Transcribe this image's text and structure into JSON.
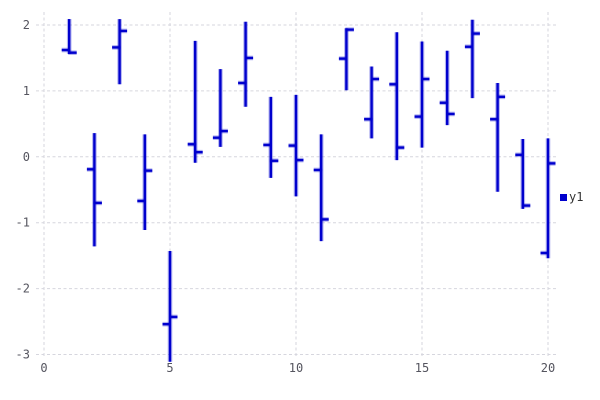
{
  "chart_data": {
    "type": "ohlc",
    "title": "",
    "xlabel": "",
    "ylabel": "",
    "grid": true,
    "x_ticks": [
      0,
      5,
      10,
      15,
      20
    ],
    "y_ticks": [
      2,
      1,
      0,
      -1,
      -2,
      -3
    ],
    "xlim": [
      -0.3,
      20.3
    ],
    "ylim": [
      -3.15,
      2.26
    ],
    "legend": {
      "label": "y1",
      "position": "right-middle-outside"
    },
    "series": [
      {
        "name": "y1",
        "color": "#0000cd",
        "points": [
          {
            "x": 1,
            "open": 1.62,
            "close": 1.58,
            "high": 2.09,
            "low": 1.56
          },
          {
            "x": 2,
            "open": -0.19,
            "close": -0.7,
            "high": 0.36,
            "low": -1.36
          },
          {
            "x": 3,
            "open": 1.66,
            "close": 1.91,
            "high": 2.09,
            "low": 1.1
          },
          {
            "x": 4,
            "open": -0.67,
            "close": -0.21,
            "high": 0.34,
            "low": -1.11
          },
          {
            "x": 5,
            "open": -2.54,
            "close": -2.43,
            "high": -1.43,
            "low": -3.11
          },
          {
            "x": 6,
            "open": 0.19,
            "close": 0.07,
            "high": 1.76,
            "low": -0.09
          },
          {
            "x": 7,
            "open": 0.29,
            "close": 0.39,
            "high": 1.33,
            "low": 0.15
          },
          {
            "x": 8,
            "open": 1.12,
            "close": 1.5,
            "high": 2.05,
            "low": 0.76
          },
          {
            "x": 9,
            "open": 0.18,
            "close": -0.06,
            "high": 0.91,
            "low": -0.32
          },
          {
            "x": 10,
            "open": 0.17,
            "close": -0.05,
            "high": 0.94,
            "low": -0.6
          },
          {
            "x": 11,
            "open": -0.2,
            "close": -0.95,
            "high": 0.34,
            "low": -1.28
          },
          {
            "x": 12,
            "open": 1.49,
            "close": 1.93,
            "high": 1.95,
            "low": 1.01
          },
          {
            "x": 13,
            "open": 0.57,
            "close": 1.18,
            "high": 1.37,
            "low": 0.28
          },
          {
            "x": 14,
            "open": 1.1,
            "close": 0.14,
            "high": 1.89,
            "low": -0.05
          },
          {
            "x": 15,
            "open": 0.61,
            "close": 1.18,
            "high": 1.75,
            "low": 0.14
          },
          {
            "x": 16,
            "open": 0.82,
            "close": 0.65,
            "high": 1.61,
            "low": 0.48
          },
          {
            "x": 17,
            "open": 1.67,
            "close": 1.87,
            "high": 2.08,
            "low": 0.89
          },
          {
            "x": 18,
            "open": 0.57,
            "close": 0.91,
            "high": 1.12,
            "low": -0.53
          },
          {
            "x": 19,
            "open": 0.03,
            "close": -0.74,
            "high": 0.27,
            "low": -0.79
          },
          {
            "x": 20,
            "open": -1.46,
            "close": -0.1,
            "high": 0.28,
            "low": -1.54
          }
        ]
      }
    ]
  },
  "colors": {
    "background": "#ffffff",
    "grid": "#d6d6de",
    "axis_label": "#55555f",
    "legend_text": "#333333",
    "series_halo": "rgba(0,0,205,0.30)"
  }
}
